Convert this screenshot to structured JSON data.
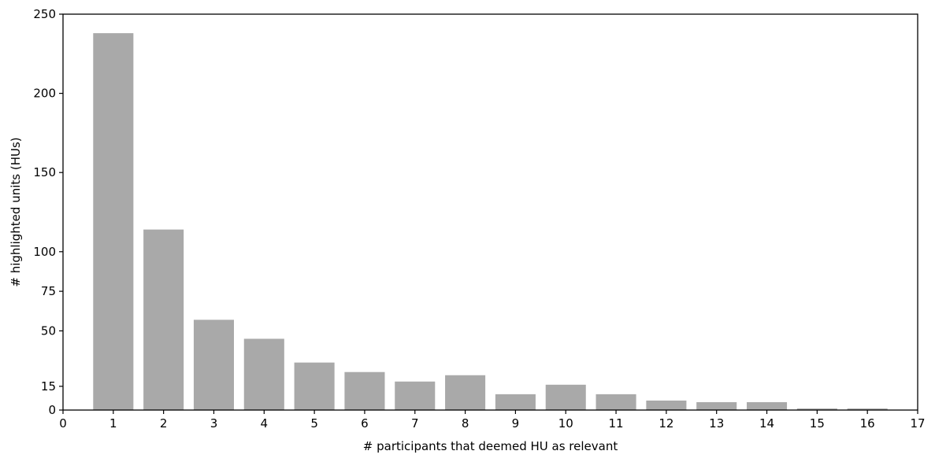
{
  "chart_data": {
    "type": "bar",
    "title": "",
    "xlabel": "# participants that deemed HU as relevant",
    "ylabel": "# highlighted units (HUs)",
    "categories": [
      1,
      2,
      3,
      4,
      5,
      6,
      7,
      8,
      9,
      10,
      11,
      12,
      13,
      14,
      15,
      16
    ],
    "values": [
      238,
      114,
      57,
      45,
      30,
      24,
      18,
      22,
      10,
      16,
      10,
      6,
      5,
      5,
      1,
      1
    ],
    "xlim": [
      0,
      17
    ],
    "ylim": [
      0,
      250
    ],
    "xticks": [
      "0",
      "1",
      "2",
      "3",
      "4",
      "5",
      "6",
      "7",
      "8",
      "9",
      "10",
      "11",
      "12",
      "13",
      "14",
      "15",
      "16",
      "17"
    ],
    "yticks": [
      0,
      15,
      50,
      75,
      100,
      150,
      200,
      250
    ],
    "ytick_labels": [
      "0",
      "15",
      "50",
      "75",
      "100",
      "150",
      "200",
      "250"
    ],
    "bar_color": "#a9a9a9",
    "grid": false,
    "legend": "none"
  }
}
